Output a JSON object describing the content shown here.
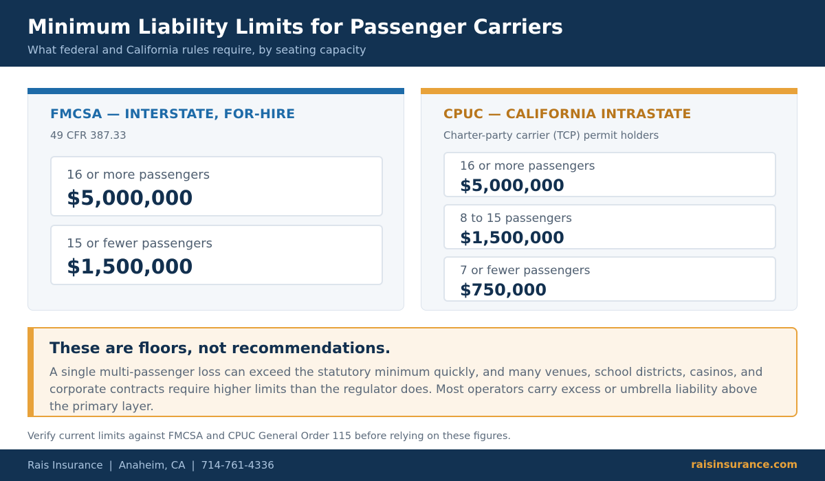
{
  "header": {
    "title": "Minimum Liability Limits for Passenger Carriers",
    "subtitle": "What federal and California rules require, by seating capacity"
  },
  "panels": [
    {
      "title": "FMCSA — INTERSTATE, FOR-HIRE",
      "subtitle": "49 CFR 387.33",
      "accent_color": "#1e6ba8",
      "tiers": [
        {
          "label": "16 or more passengers",
          "value": "$5,000,000"
        },
        {
          "label": "15 or fewer passengers",
          "value": "$1,500,000"
        }
      ]
    },
    {
      "title": "CPUC — CALIFORNIA INTRASTATE",
      "subtitle": "Charter-party carrier (TCP) permit holders",
      "accent_color": "#e8a23a",
      "tiers": [
        {
          "label": "16 or more passengers",
          "value": "$5,000,000"
        },
        {
          "label": "8 to 15 passengers",
          "value": "$1,500,000"
        },
        {
          "label": "7 or fewer passengers",
          "value": "$750,000"
        }
      ]
    }
  ],
  "callout": {
    "title": "These are floors, not recommendations.",
    "body": "A single multi-passenger loss can exceed the statutory minimum quickly, and many venues, school districts, casinos, and corporate contracts require higher limits than the regulator does. Most operators carry excess or umbrella liability above the primary layer."
  },
  "note": "Verify current limits against FMCSA and CPUC General Order 115 before relying on these figures.",
  "footer": {
    "company": "Rais Insurance",
    "location": "Anaheim, CA",
    "phone": "714-761-4336",
    "separator": "|",
    "website": "raisinsurance.com"
  },
  "colors": {
    "navy": "#123252",
    "blue": "#1e6ba8",
    "orange": "#e8a23a"
  }
}
